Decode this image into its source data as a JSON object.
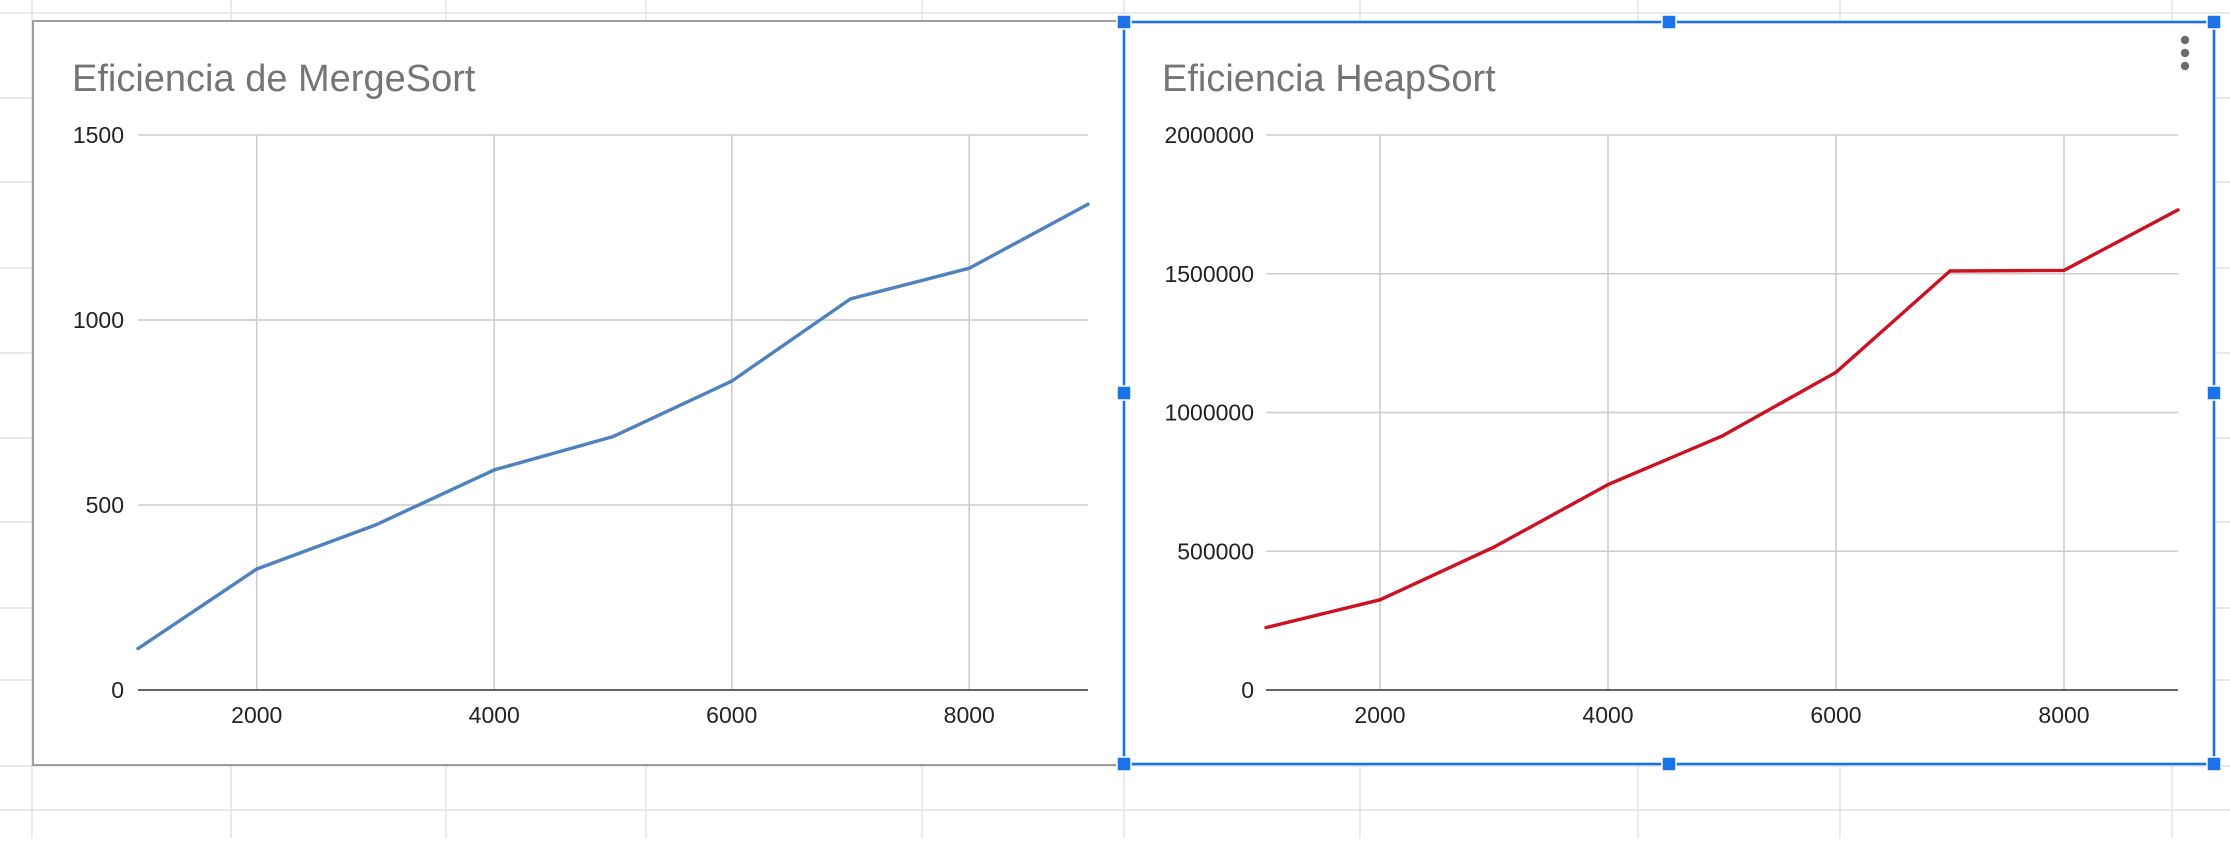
{
  "colors": {
    "merge_series": "#4f81bd",
    "heap_series": "#cc1122",
    "selection": "#1a73e8"
  },
  "menu_icon": "kebab-menu-icon",
  "chart_data": [
    {
      "type": "line",
      "title": "Eficiencia de MergeSort",
      "xlabel": "",
      "ylabel": "",
      "x": [
        1000,
        2000,
        3000,
        4000,
        5000,
        6000,
        7000,
        8000,
        9000
      ],
      "series": [
        {
          "name": "",
          "values": [
            112,
            327,
            446,
            595,
            685,
            835,
            1057,
            1140,
            1313
          ]
        }
      ],
      "xlim": [
        1000,
        9000
      ],
      "ylim": [
        0,
        1500
      ],
      "x_ticks": [
        "2000",
        "4000",
        "6000",
        "8000"
      ],
      "y_ticks": [
        "0",
        "500",
        "1000",
        "1500"
      ],
      "grid": true,
      "legend": "none"
    },
    {
      "type": "line",
      "title": "Eficiencia HeapSort",
      "xlabel": "",
      "ylabel": "",
      "x": [
        1000,
        2000,
        3000,
        4000,
        5000,
        6000,
        7000,
        8000,
        9000
      ],
      "series": [
        {
          "name": "",
          "values": [
            225000,
            325000,
            515000,
            740000,
            915000,
            1145000,
            1510000,
            1512000,
            1730000
          ]
        }
      ],
      "xlim": [
        1000,
        9000
      ],
      "ylim": [
        0,
        2000000
      ],
      "x_ticks": [
        "2000",
        "4000",
        "6000",
        "8000"
      ],
      "y_ticks": [
        "0",
        "500000",
        "1000000",
        "1500000",
        "2000000"
      ],
      "grid": true,
      "legend": "none"
    }
  ]
}
